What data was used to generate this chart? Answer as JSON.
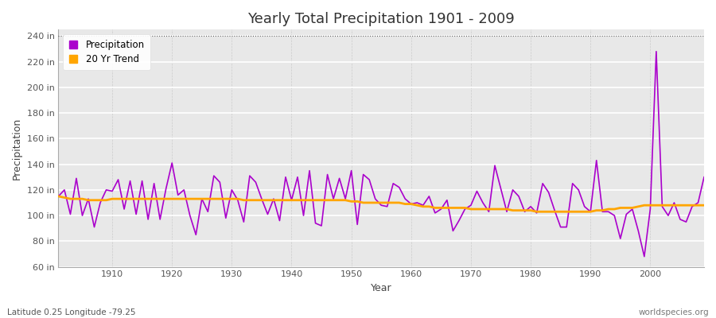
{
  "title": "Yearly Total Precipitation 1901 - 2009",
  "xlabel": "Year",
  "ylabel": "Precipitation",
  "subtitle_left": "Latitude 0.25 Longitude -79.25",
  "subtitle_right": "worldspecies.org",
  "ylim": [
    60,
    245
  ],
  "yticks": [
    60,
    80,
    100,
    120,
    140,
    160,
    180,
    200,
    220,
    240
  ],
  "ytick_labels": [
    "60 in",
    "80 in",
    "100 in",
    "120 in",
    "140 in",
    "160 in",
    "180 in",
    "200 in",
    "220 in",
    "240 in"
  ],
  "xticks": [
    1910,
    1920,
    1930,
    1940,
    1950,
    1960,
    1970,
    1980,
    1990,
    2000
  ],
  "xlim": [
    1901,
    2009
  ],
  "precip_color": "#AA00CC",
  "trend_color": "#FFA500",
  "fig_bg_color": "#FFFFFF",
  "plot_bg_color": "#E8E8E8",
  "hgrid_color": "#FFFFFF",
  "vgrid_color": "#CCCCCC",
  "hline_240_color": "#555555",
  "years": [
    1901,
    1902,
    1903,
    1904,
    1905,
    1906,
    1907,
    1908,
    1909,
    1910,
    1911,
    1912,
    1913,
    1914,
    1915,
    1916,
    1917,
    1918,
    1919,
    1920,
    1921,
    1922,
    1923,
    1924,
    1925,
    1926,
    1927,
    1928,
    1929,
    1930,
    1931,
    1932,
    1933,
    1934,
    1935,
    1936,
    1937,
    1938,
    1939,
    1940,
    1941,
    1942,
    1943,
    1944,
    1945,
    1946,
    1947,
    1948,
    1949,
    1950,
    1951,
    1952,
    1953,
    1954,
    1955,
    1956,
    1957,
    1958,
    1959,
    1960,
    1961,
    1962,
    1963,
    1964,
    1965,
    1966,
    1967,
    1968,
    1969,
    1970,
    1971,
    1972,
    1973,
    1974,
    1975,
    1976,
    1977,
    1978,
    1979,
    1980,
    1981,
    1982,
    1983,
    1984,
    1985,
    1986,
    1987,
    1988,
    1989,
    1990,
    1991,
    1992,
    1993,
    1994,
    1995,
    1996,
    1997,
    1998,
    1999,
    2000,
    2001,
    2002,
    2003,
    2004,
    2005,
    2006,
    2007,
    2008,
    2009
  ],
  "precip": [
    115,
    120,
    101,
    129,
    100,
    113,
    91,
    110,
    120,
    119,
    128,
    105,
    127,
    101,
    127,
    97,
    125,
    97,
    121,
    141,
    116,
    120,
    100,
    85,
    113,
    103,
    131,
    126,
    98,
    120,
    112,
    95,
    131,
    126,
    113,
    101,
    113,
    96,
    130,
    112,
    130,
    100,
    135,
    94,
    92,
    132,
    113,
    129,
    113,
    135,
    93,
    132,
    128,
    113,
    108,
    107,
    125,
    122,
    113,
    109,
    110,
    108,
    115,
    102,
    105,
    112,
    88,
    96,
    105,
    108,
    119,
    110,
    103,
    139,
    121,
    103,
    120,
    115,
    103,
    107,
    102,
    125,
    118,
    104,
    91,
    91,
    125,
    120,
    107,
    103,
    143,
    103,
    103,
    100,
    82,
    101,
    105,
    88,
    68,
    105,
    228,
    107,
    100,
    110,
    97,
    95,
    107,
    110,
    130
  ],
  "trend": [
    115,
    114,
    113,
    113,
    113,
    112,
    112,
    112,
    112,
    113,
    113,
    113,
    113,
    113,
    113,
    113,
    113,
    113,
    113,
    113,
    113,
    113,
    113,
    113,
    113,
    113,
    113,
    113,
    113,
    113,
    113,
    112,
    112,
    112,
    112,
    112,
    112,
    112,
    112,
    112,
    112,
    112,
    112,
    112,
    112,
    112,
    112,
    112,
    112,
    111,
    111,
    110,
    110,
    110,
    110,
    110,
    110,
    110,
    109,
    109,
    108,
    107,
    107,
    106,
    106,
    106,
    106,
    106,
    106,
    105,
    105,
    105,
    105,
    105,
    105,
    105,
    104,
    104,
    104,
    104,
    103,
    103,
    103,
    103,
    103,
    103,
    103,
    103,
    103,
    103,
    104,
    104,
    105,
    105,
    106,
    106,
    106,
    107,
    108,
    108,
    108,
    108,
    108,
    108,
    108,
    108,
    108,
    108,
    108
  ],
  "legend_marker_color_precip": "#AA00CC",
  "legend_marker_color_trend": "#FFA500"
}
